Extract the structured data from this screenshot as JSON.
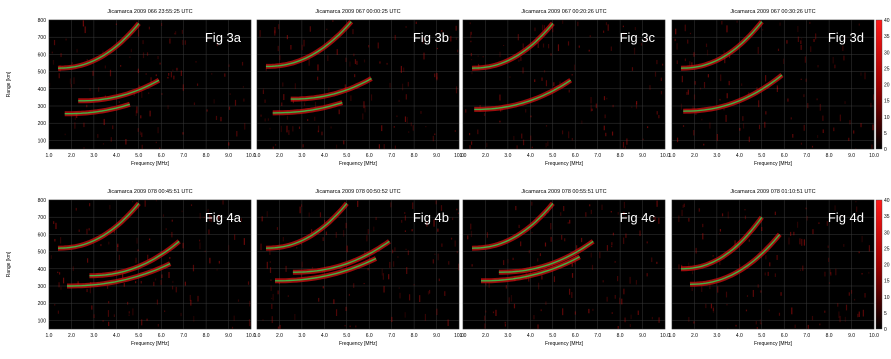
{
  "chart_data": [
    {
      "type": "heatmap",
      "row": "Fig 3",
      "colorbar": {
        "min": 0,
        "max": 40,
        "ticks": [
          "40",
          "35",
          "30",
          "25",
          "20",
          "15",
          "10",
          "5",
          "0"
        ]
      },
      "ylabel": "Range [km]",
      "ylim": [
        50,
        800
      ],
      "yticks": [
        "800",
        "700",
        "600",
        "500",
        "400",
        "300",
        "200",
        "100"
      ],
      "xlim": [
        1.0,
        10.0
      ],
      "xticks": [
        "1.0",
        "2.0",
        "3.0",
        "4.0",
        "5.0",
        "6.0",
        "7.0",
        "8.0",
        "9.0",
        "10.0"
      ],
      "xlabel": "Frequency [MHz]",
      "panels": [
        {
          "title": "Jicamarca 2009 066 23:55:25 UTC",
          "label": "Fig 3a",
          "traces": [
            {
              "f0": 1.7,
              "f1": 4.6,
              "h0": 255,
              "h1": 310
            },
            {
              "f0": 2.3,
              "f1": 5.9,
              "h0": 330,
              "h1": 450
            },
            {
              "f0": 1.4,
              "f1": 5.0,
              "h0": 520,
              "h1": 780
            }
          ]
        },
        {
          "title": "Jicamarca 2009 067 00:00:25 UTC",
          "label": "Fig 3b",
          "traces": [
            {
              "f0": 1.7,
              "f1": 4.8,
              "h0": 260,
              "h1": 320
            },
            {
              "f0": 2.5,
              "f1": 6.1,
              "h0": 340,
              "h1": 460
            },
            {
              "f0": 1.4,
              "f1": 5.2,
              "h0": 530,
              "h1": 790
            }
          ]
        },
        {
          "title": "Jicamarca 2009 067 00:20:26 UTC",
          "label": "Fig 3c",
          "traces": [
            {
              "f0": 1.5,
              "f1": 5.8,
              "h0": 280,
              "h1": 450
            },
            {
              "f0": 1.4,
              "f1": 5.0,
              "h0": 520,
              "h1": 780
            }
          ]
        },
        {
          "title": "Jicamarca 2009 067 00:30:26 UTC",
          "label": "Fig 3d",
          "traces": [
            {
              "f0": 1.5,
              "f1": 5.9,
              "h0": 270,
              "h1": 480
            },
            {
              "f0": 1.4,
              "f1": 5.0,
              "h0": 520,
              "h1": 790
            }
          ]
        }
      ]
    },
    {
      "type": "heatmap",
      "row": "Fig 4",
      "colorbar": {
        "min": 0,
        "max": 40,
        "ticks": [
          "40",
          "35",
          "30",
          "25",
          "20",
          "15",
          "10",
          "5",
          "0"
        ]
      },
      "ylabel": "Range [km]",
      "ylim": [
        50,
        800
      ],
      "yticks": [
        "800",
        "700",
        "600",
        "500",
        "400",
        "300",
        "200",
        "100"
      ],
      "xlim": [
        1.0,
        10.0
      ],
      "xticks": [
        "1.0",
        "2.0",
        "3.0",
        "4.0",
        "5.0",
        "6.0",
        "7.0",
        "8.0",
        "9.0",
        "10.0"
      ],
      "xlabel": "Frequency [MHz]",
      "panels": [
        {
          "title": "Jicamarca 2009 078 00:45:51 UTC",
          "label": "Fig 4a",
          "traces": [
            {
              "f0": 1.8,
              "f1": 6.4,
              "h0": 300,
              "h1": 430
            },
            {
              "f0": 2.8,
              "f1": 6.8,
              "h0": 360,
              "h1": 560
            },
            {
              "f0": 1.4,
              "f1": 5.0,
              "h0": 520,
              "h1": 780
            }
          ]
        },
        {
          "title": "Jicamarca 2009 078 00:50:52 UTC",
          "label": "Fig 4b",
          "traces": [
            {
              "f0": 1.8,
              "f1": 6.3,
              "h0": 330,
              "h1": 460
            },
            {
              "f0": 2.6,
              "f1": 6.9,
              "h0": 380,
              "h1": 560
            },
            {
              "f0": 1.4,
              "f1": 5.0,
              "h0": 520,
              "h1": 780
            }
          ]
        },
        {
          "title": "Jicamarca 2009 078 00:55:51 UTC",
          "label": "Fig 4c",
          "traces": [
            {
              "f0": 1.8,
              "f1": 6.2,
              "h0": 330,
              "h1": 470
            },
            {
              "f0": 2.6,
              "f1": 6.8,
              "h0": 380,
              "h1": 560
            },
            {
              "f0": 1.4,
              "f1": 5.0,
              "h0": 520,
              "h1": 780
            }
          ]
        },
        {
          "title": "Jicamarca 2009 078 01:10:51 UTC",
          "label": "Fig 4d",
          "traces": [
            {
              "f0": 1.8,
              "f1": 5.8,
              "h0": 310,
              "h1": 600
            },
            {
              "f0": 1.4,
              "f1": 5.0,
              "h0": 400,
              "h1": 700
            }
          ]
        }
      ]
    }
  ],
  "colors": {
    "background": "#000000",
    "echo_red": "#d01010",
    "echo_green": "#30d050",
    "label": "#ffffff",
    "grid": "#3a3a3a"
  }
}
